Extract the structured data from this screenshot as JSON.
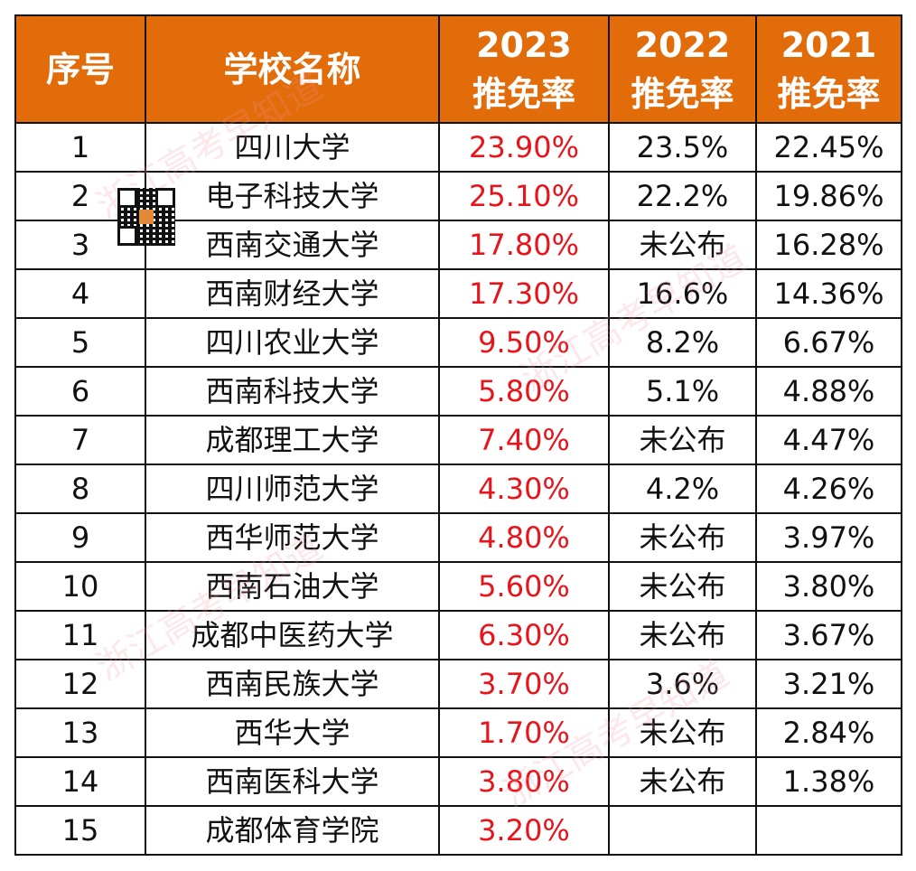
{
  "table": {
    "headers": [
      "序号",
      "学校名称",
      "2023\n推免率",
      "2022\n推免率",
      "2021\n推免率"
    ],
    "header_lines": [
      [
        "序号"
      ],
      [
        "学校名称"
      ],
      [
        "2023",
        "推免率"
      ],
      [
        "2022",
        "推免率"
      ],
      [
        "2021",
        "推免率"
      ]
    ],
    "rows": [
      [
        "1",
        "四川大学",
        "23.90%",
        "23.5%",
        "22.45%"
      ],
      [
        "2",
        "电子科技大学",
        "25.10%",
        "22.2%",
        "19.86%"
      ],
      [
        "3",
        "西南交通大学",
        "17.80%",
        "未公布",
        "16.28%"
      ],
      [
        "4",
        "西南财经大学",
        "17.30%",
        "16.6%",
        "14.36%"
      ],
      [
        "5",
        "四川农业大学",
        "9.50%",
        "8.2%",
        "6.67%"
      ],
      [
        "6",
        "西南科技大学",
        "5.80%",
        "5.1%",
        "4.88%"
      ],
      [
        "7",
        "成都理工大学",
        "7.40%",
        "未公布",
        "4.47%"
      ],
      [
        "8",
        "四川师范大学",
        "4.30%",
        "4.2%",
        "4.26%"
      ],
      [
        "9",
        "西华师范大学",
        "4.80%",
        "未公布",
        "3.97%"
      ],
      [
        "10",
        "西南石油大学",
        "5.60%",
        "未公布",
        "3.80%"
      ],
      [
        "11",
        "成都中医药大学",
        "6.30%",
        "未公布",
        "3.67%"
      ],
      [
        "12",
        "西南民族大学",
        "3.70%",
        "3.6%",
        "3.21%"
      ],
      [
        "13",
        "西华大学",
        "1.70%",
        "未公布",
        "2.84%"
      ],
      [
        "14",
        "西南医科大学",
        "3.80%",
        "未公布",
        "1.38%"
      ],
      [
        "15",
        "成都体育学院",
        "3.20%",
        "",
        ""
      ]
    ]
  },
  "watermark": "浙江高考早知道",
  "colors": {
    "header_bg": "#E26B0A",
    "header_text": "#FFFFFF",
    "highlight_2023": "#E8141B"
  }
}
